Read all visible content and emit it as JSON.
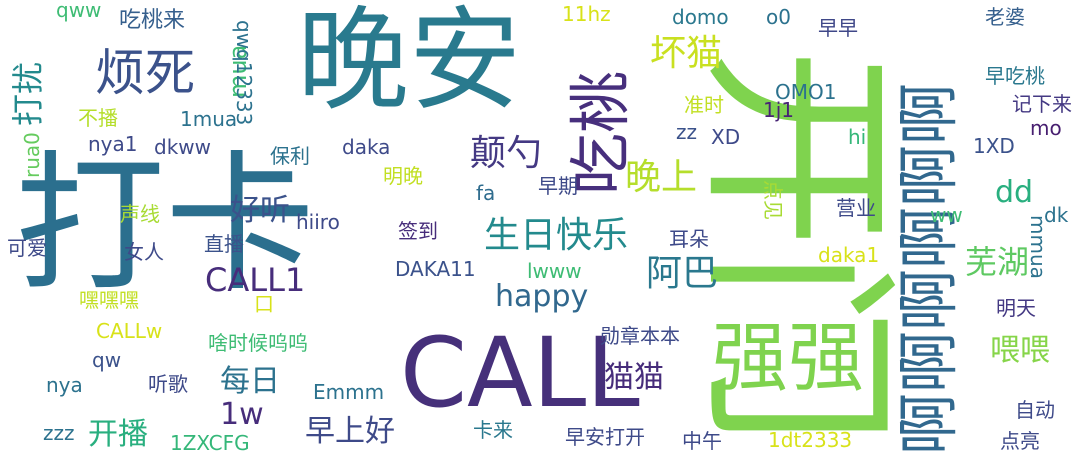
{
  "words": [
    {
      "text": "打卡",
      "color": "#2b6f8e",
      "rot": 0
    },
    {
      "text": "晚安",
      "color": "#297a8e",
      "rot": 0
    },
    {
      "text": "开门",
      "color": "#7fd34e",
      "rot": 90
    },
    {
      "text": "CALL",
      "color": "#46307a",
      "rot": 0
    },
    {
      "text": "啊啊啊啊啊啊",
      "color": "#31688e",
      "rot": -90
    },
    {
      "text": "强强",
      "color": "#7fd34e",
      "rot": 0
    },
    {
      "text": "吃桃",
      "color": "#472f7d",
      "rot": -90
    },
    {
      "text": "烦死",
      "color": "#3b528b",
      "rot": 0
    },
    {
      "text": "打扰",
      "color": "#238a8d",
      "rot": -90
    },
    {
      "text": "坏猫",
      "color": "#c9e020",
      "rot": 0
    },
    {
      "text": "晚上",
      "color": "#b5de2b",
      "rot": 0
    },
    {
      "text": "颠勺",
      "color": "#443983",
      "rot": 0
    },
    {
      "text": "生日快乐",
      "color": "#238a8d",
      "rot": 0
    },
    {
      "text": "happy",
      "color": "#31688e",
      "rot": 0
    },
    {
      "text": "阿巴",
      "color": "#2a788e",
      "rot": 0
    },
    {
      "text": "CALL1",
      "color": "#472d7b",
      "rot": 0
    },
    {
      "text": "dd",
      "color": "#29af7f",
      "rot": 0
    },
    {
      "text": "芜湖",
      "color": "#5ec962",
      "rot": 0
    },
    {
      "text": "好听",
      "color": "#3b528b",
      "rot": 0
    },
    {
      "text": "喂喂",
      "color": "#86d549",
      "rot": 0
    },
    {
      "text": "每日",
      "color": "#2c728e",
      "rot": 0
    },
    {
      "text": "1w",
      "color": "#472d7b",
      "rot": 0
    },
    {
      "text": "猫猫",
      "color": "#472d7b",
      "rot": 0
    },
    {
      "text": "早上好",
      "color": "#3e4a89",
      "rot": 0
    },
    {
      "text": "开播",
      "color": "#29af7f",
      "rot": 0
    },
    {
      "text": "mua",
      "color": "#3ebc74",
      "rot": -90
    },
    {
      "text": "qwq12333",
      "color": "#2c728e",
      "rot": 90
    },
    {
      "text": "吃桃来",
      "color": "#355f8d",
      "rot": 0
    },
    {
      "text": "qww",
      "color": "#3ebc74",
      "rot": 0
    },
    {
      "text": "11hz",
      "color": "#d8e219",
      "rot": 0
    },
    {
      "text": "domo",
      "color": "#2a788e",
      "rot": 0
    },
    {
      "text": "o0",
      "color": "#2c728e",
      "rot": 0
    },
    {
      "text": "早早",
      "color": "#3f4788",
      "rot": 0
    },
    {
      "text": "老婆",
      "color": "#355f8d",
      "rot": 0
    },
    {
      "text": "早吃桃",
      "color": "#2a788e",
      "rot": 0
    },
    {
      "text": "记下来",
      "color": "#443983",
      "rot": 0
    },
    {
      "text": "mo",
      "color": "#481f70",
      "rot": 0
    },
    {
      "text": "OMO1",
      "color": "#2c728e",
      "rot": 0
    },
    {
      "text": "1j1",
      "color": "#482475",
      "rot": 0
    },
    {
      "text": "准时",
      "color": "#c2df23",
      "rot": 0
    },
    {
      "text": "zz",
      "color": "#3b528b",
      "rot": 0
    },
    {
      "text": "XD",
      "color": "#3e4a89",
      "rot": 0
    },
    {
      "text": "hi",
      "color": "#35b779",
      "rot": 0
    },
    {
      "text": "1XD",
      "color": "#3b528b",
      "rot": 0
    },
    {
      "text": "rua0",
      "color": "#65cb5e",
      "rot": -90
    },
    {
      "text": "不播",
      "color": "#b5de2b",
      "rot": 0
    },
    {
      "text": "1mua",
      "color": "#2c728e",
      "rot": 0
    },
    {
      "text": "nya1",
      "color": "#3e4a89",
      "rot": 0
    },
    {
      "text": "dkww",
      "color": "#3e4a89",
      "rot": 0
    },
    {
      "text": "保利",
      "color": "#2c728e",
      "rot": 0
    },
    {
      "text": "daka",
      "color": "#3e4a89",
      "rot": 0
    },
    {
      "text": "明晚",
      "color": "#c2df23",
      "rot": 0
    },
    {
      "text": "fa",
      "color": "#2f6c8e",
      "rot": 0
    },
    {
      "text": "早期",
      "color": "#3e4a89",
      "rot": 0
    },
    {
      "text": "点见",
      "color": "#a8db34",
      "rot": 90
    },
    {
      "text": "营业",
      "color": "#3e4a89",
      "rot": 0
    },
    {
      "text": "ww",
      "color": "#3ebc74",
      "rot": 0
    },
    {
      "text": "dk",
      "color": "#2c728e",
      "rot": 0
    },
    {
      "text": "mmua",
      "color": "#2c728e",
      "rot": 90
    },
    {
      "text": "声线",
      "color": "#a8db34",
      "rot": 0
    },
    {
      "text": "hiiro",
      "color": "#3e4a89",
      "rot": 0
    },
    {
      "text": "签到",
      "color": "#472d7b",
      "rot": 0
    },
    {
      "text": "耳朵",
      "color": "#3e4a89",
      "rot": 0
    },
    {
      "text": "可爱",
      "color": "#3e4a89",
      "rot": 0
    },
    {
      "text": "女人",
      "color": "#3e4a89",
      "rot": 0
    },
    {
      "text": "直播",
      "color": "#3b528b",
      "rot": 0
    },
    {
      "text": "daka1",
      "color": "#d8e219",
      "rot": 0
    },
    {
      "text": "DAKA11",
      "color": "#3b528b",
      "rot": 0
    },
    {
      "text": "lwww",
      "color": "#3ebc74",
      "rot": 0
    },
    {
      "text": "明天",
      "color": "#443983",
      "rot": 0
    },
    {
      "text": "嘿嘿嘿",
      "color": "#c2df23",
      "rot": 0
    },
    {
      "text": "口",
      "color": "#d8e219",
      "rot": 0
    },
    {
      "text": "CALLw",
      "color": "#d8e219",
      "rot": 0
    },
    {
      "text": "啥时候呜呜",
      "color": "#3ebc74",
      "rot": 0
    },
    {
      "text": "勋章本本",
      "color": "#3e4a89",
      "rot": 0
    },
    {
      "text": "qw",
      "color": "#3b528b",
      "rot": 0
    },
    {
      "text": "nya",
      "color": "#2c728e",
      "rot": 0
    },
    {
      "text": "听歌",
      "color": "#3e4a89",
      "rot": 0
    },
    {
      "text": "Emmm",
      "color": "#2c728e",
      "rot": 0
    },
    {
      "text": "自动",
      "color": "#3e4a89",
      "rot": 0
    },
    {
      "text": "zzz",
      "color": "#2c728e",
      "rot": 0
    },
    {
      "text": "1ZXCFG",
      "color": "#35b779",
      "rot": 0
    },
    {
      "text": "卡来",
      "color": "#2a788e",
      "rot": 0
    },
    {
      "text": "早安打开",
      "color": "#3e4a89",
      "rot": 0
    },
    {
      "text": "中午",
      "color": "#3e4a89",
      "rot": 0
    },
    {
      "text": "1dt2333",
      "color": "#d8e219",
      "rot": 0
    },
    {
      "text": "点亮",
      "color": "#3e4a89",
      "rot": 0
    }
  ]
}
